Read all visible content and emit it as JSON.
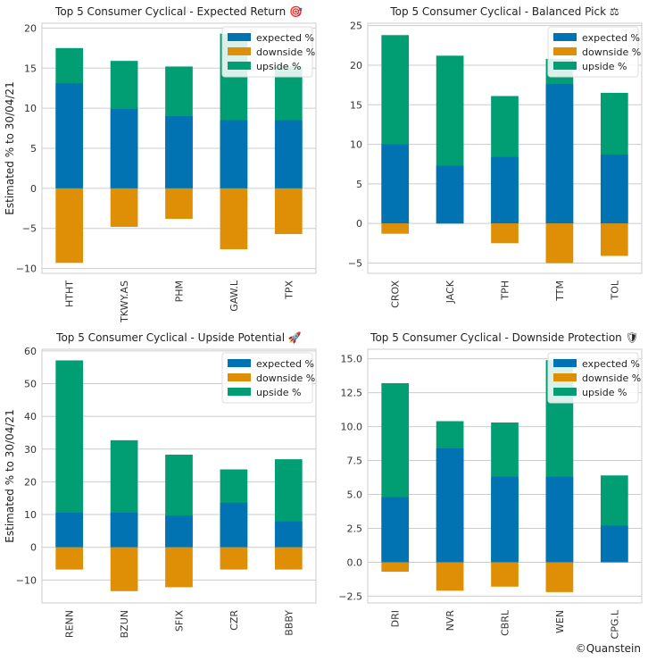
{
  "colors": {
    "expected": "#0173b2",
    "downside": "#de8f05",
    "upside": "#029e73"
  },
  "legend_labels": [
    "expected %",
    "downside %",
    "upside %"
  ],
  "credit": "©Quanstein",
  "chart_data": [
    {
      "type": "bar",
      "title": "Top 5 Consumer Cyclical - Expected Return 🎯",
      "ylabel": "Estimated % to 30/04/21",
      "categories": [
        "HTHT",
        "TKWY.AS",
        "PHM",
        "GAW.L",
        "TPX"
      ],
      "series": [
        {
          "name": "expected %",
          "values": [
            13.1,
            9.9,
            9.0,
            8.5,
            8.5
          ]
        },
        {
          "name": "downside %",
          "values": [
            -9.3,
            -4.8,
            -3.8,
            -7.6,
            -5.7
          ]
        },
        {
          "name": "upside %",
          "values": [
            17.5,
            15.9,
            15.2,
            19.3,
            15.2
          ]
        }
      ],
      "yticks": [
        -10,
        -5,
        0,
        5,
        10,
        15,
        20
      ],
      "ytick_labels": [
        "−10",
        "−5",
        "0",
        "5",
        "10",
        "15",
        "20"
      ],
      "ylim": [
        -10.6,
        20.6
      ],
      "legend": "top-right"
    },
    {
      "type": "bar",
      "title": "Top 5 Consumer Cyclical - Balanced Pick ⚖",
      "ylabel": "",
      "categories": [
        "CROX",
        "JACK",
        "TPH",
        "TTM",
        "TOL"
      ],
      "series": [
        {
          "name": "expected %",
          "values": [
            10.0,
            7.3,
            8.4,
            17.6,
            8.7
          ]
        },
        {
          "name": "downside %",
          "values": [
            -1.3,
            0,
            -2.5,
            -5.0,
            -4.1
          ]
        },
        {
          "name": "upside %",
          "values": [
            23.8,
            21.2,
            16.1,
            20.8,
            16.5
          ]
        }
      ],
      "yticks": [
        -5,
        0,
        5,
        10,
        15,
        20,
        25
      ],
      "ytick_labels": [
        "−5",
        "0",
        "5",
        "10",
        "15",
        "20",
        "25"
      ],
      "ylim": [
        -6.3,
        25.3
      ],
      "legend": "top-right"
    },
    {
      "type": "bar",
      "title": "Top 5 Consumer Cyclical - Upside Potential 🚀",
      "ylabel": "Estimated % to 30/04/21",
      "categories": [
        "RENN",
        "BZUN",
        "SFIX",
        "CZR",
        "BBBY"
      ],
      "series": [
        {
          "name": "expected %",
          "values": [
            10.6,
            10.6,
            9.7,
            13.6,
            7.9
          ]
        },
        {
          "name": "downside %",
          "values": [
            -6.8,
            -13.4,
            -12.2,
            -6.8,
            -6.8
          ]
        },
        {
          "name": "upside %",
          "values": [
            57.1,
            32.7,
            28.3,
            23.8,
            26.9
          ]
        }
      ],
      "yticks": [
        -10,
        0,
        10,
        20,
        30,
        40,
        50,
        60
      ],
      "ytick_labels": [
        "−10",
        "0",
        "10",
        "20",
        "30",
        "40",
        "50",
        "60"
      ],
      "ylim": [
        -17,
        60.5
      ],
      "legend": "top-right"
    },
    {
      "type": "bar",
      "title": "Top 5 Consumer Cyclical - Downside Protection 🛡",
      "ylabel": "",
      "categories": [
        "DRI",
        "NVR",
        "CBRL",
        "WEN",
        "CPG.L"
      ],
      "series": [
        {
          "name": "expected %",
          "values": [
            4.8,
            8.4,
            6.3,
            6.3,
            2.7
          ]
        },
        {
          "name": "downside %",
          "values": [
            -0.7,
            -2.1,
            -1.8,
            -2.2,
            0
          ]
        },
        {
          "name": "upside %",
          "values": [
            13.2,
            10.4,
            10.3,
            14.9,
            6.4
          ]
        }
      ],
      "yticks": [
        -2.5,
        0,
        2.5,
        5,
        7.5,
        10,
        12.5,
        15
      ],
      "ytick_labels": [
        "−2.5",
        "0.0",
        "2.5",
        "5.0",
        "7.5",
        "10.0",
        "12.5",
        "15.0"
      ],
      "ylim": [
        -3.0,
        15.7
      ],
      "legend": "top-right"
    }
  ]
}
